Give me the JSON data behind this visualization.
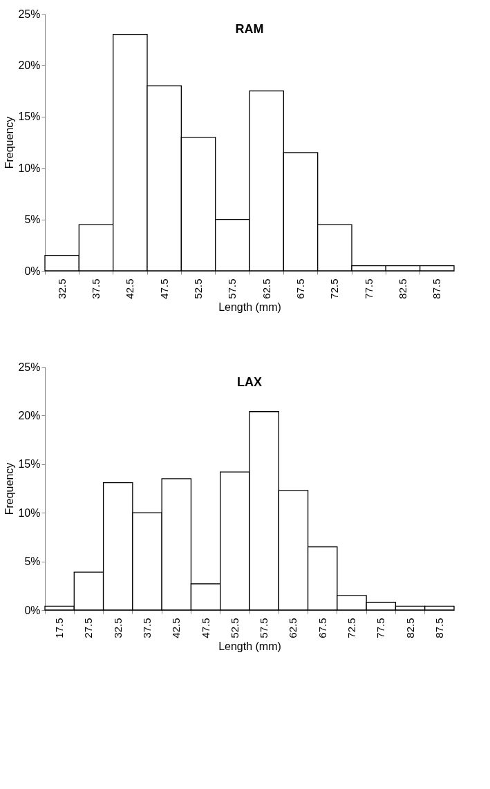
{
  "chart_data": [
    {
      "type": "bar",
      "title": "RAM",
      "xlabel": "Length (mm)",
      "ylabel": "Frequency",
      "categories": [
        "32.5",
        "37.5",
        "42.5",
        "47.5",
        "52.5",
        "57.5",
        "62.5",
        "67.5",
        "72.5",
        "77.5",
        "82.5",
        "87.5"
      ],
      "values": [
        1.5,
        4.5,
        23,
        18,
        13,
        5,
        17.5,
        11.5,
        4.5,
        0.5,
        0.5,
        0.5
      ],
      "color": "#ffffff",
      "ylim": [
        0,
        25
      ],
      "yticks": [
        {
          "value": 0,
          "label": "0%"
        },
        {
          "value": 5,
          "label": "5%"
        },
        {
          "value": 10,
          "label": "10%"
        },
        {
          "value": 15,
          "label": "15%"
        },
        {
          "value": 20,
          "label": "20%"
        },
        {
          "value": 25,
          "label": "25%"
        }
      ]
    },
    {
      "type": "bar",
      "title": "LAX",
      "xlabel": "Length (mm)",
      "ylabel": "Frequency",
      "categories": [
        "17.5",
        "27.5",
        "32.5",
        "37.5",
        "42.5",
        "47.5",
        "52.5",
        "57.5",
        "62.5",
        "67.5",
        "72.5",
        "77.5",
        "82.5",
        "87.5"
      ],
      "values": [
        0.4,
        3.9,
        13.1,
        10,
        13.5,
        2.7,
        14.2,
        20.4,
        12.3,
        6.5,
        1.5,
        0.8,
        0.4,
        0.4
      ],
      "color": "#ffffff",
      "ylim": [
        0,
        25
      ],
      "yticks": [
        {
          "value": 0,
          "label": "0%"
        },
        {
          "value": 5,
          "label": "5%"
        },
        {
          "value": 10,
          "label": "10%"
        },
        {
          "value": 15,
          "label": "15%"
        },
        {
          "value": 20,
          "label": "20%"
        },
        {
          "value": 25,
          "label": "25%"
        }
      ]
    }
  ]
}
